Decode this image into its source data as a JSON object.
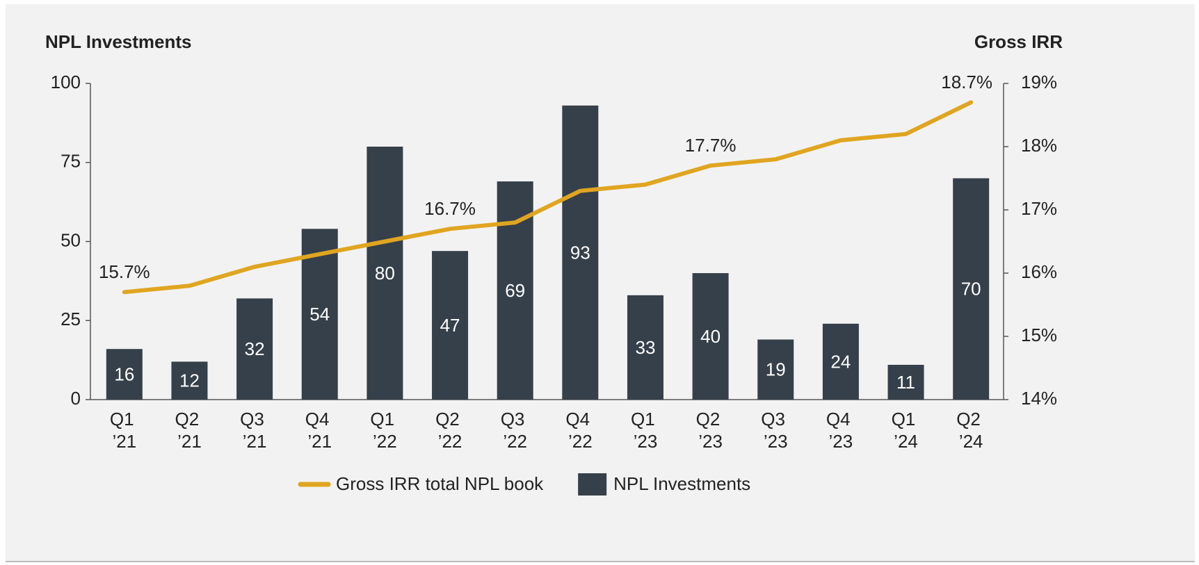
{
  "chart_data": {
    "type": "bar-line",
    "y_axis_title": "NPL Investments",
    "y2_axis_title": "Gross IRR",
    "categories": [
      "Q1 ’21",
      "Q2 ’21",
      "Q3 ’21",
      "Q4 ’21",
      "Q1 ’22",
      "Q2 ’22",
      "Q3 ’22",
      "Q4 ’22",
      "Q1 ’23",
      "Q2 ’23",
      "Q3 ’23",
      "Q4 ’23",
      "Q1 ’24",
      "Q2 ’24"
    ],
    "series": [
      {
        "name": "Gross IRR total NPL book",
        "type": "line",
        "axis": "y2",
        "color": "#e0a520",
        "values": [
          15.7,
          15.8,
          16.1,
          16.3,
          16.5,
          16.7,
          16.8,
          17.3,
          17.4,
          17.7,
          17.8,
          18.1,
          18.2,
          18.7
        ],
        "value_labels": [
          "15.7%",
          null,
          null,
          null,
          null,
          "16.7%",
          null,
          null,
          null,
          "17.7%",
          null,
          null,
          null,
          "18.7%"
        ]
      },
      {
        "name": "NPL Investments",
        "type": "bar",
        "color": "#36404a",
        "values": [
          16,
          12,
          32,
          54,
          80,
          47,
          69,
          93,
          33,
          40,
          19,
          24,
          11,
          70
        ]
      }
    ],
    "ylim": [
      0,
      100
    ],
    "yticks": [
      0,
      25,
      50,
      75,
      100
    ],
    "y2lim": [
      14,
      19
    ],
    "y2ticks": [
      {
        "value": 14,
        "label": "14%"
      },
      {
        "value": 15,
        "label": "15%"
      },
      {
        "value": 16,
        "label": "16%"
      },
      {
        "value": 17,
        "label": "17%"
      },
      {
        "value": 18,
        "label": "18%"
      },
      {
        "value": 19,
        "label": "19%"
      }
    ],
    "legend": "bottom",
    "grid": false
  }
}
